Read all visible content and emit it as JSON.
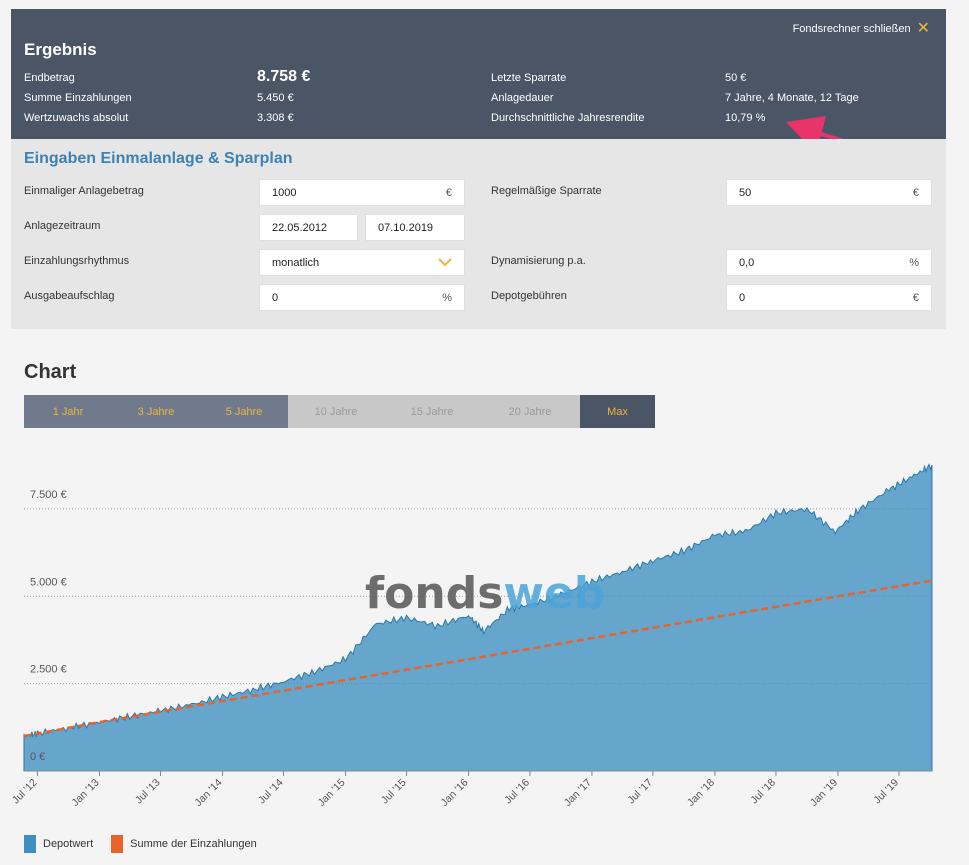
{
  "result": {
    "title": "Ergebnis",
    "close_label": "Fondsrechner schließen",
    "endbetrag_label": "Endbetrag",
    "endbetrag_value": "8.758 €",
    "summe_label": "Summe Einzahlungen",
    "summe_value": "5.450 €",
    "wertzuwachs_label": "Wertzuwachs absolut",
    "wertzuwachs_value": "3.308 €",
    "sparrate_label": "Letzte Sparrate",
    "sparrate_value": "50 €",
    "anlagedauer_label": "Anlagedauer",
    "anlagedauer_value": "7 Jahre, 4 Monate, 12 Tage",
    "rendite_label": "Durchschnittliche Jahresrendite",
    "rendite_value": "10,79 %"
  },
  "inputs": {
    "heading": "Eingaben Einmalanlage & Sparplan",
    "einmalig_label": "Einmaliger Anlagebetrag",
    "einmalig_value": "1000",
    "einmalig_unit": "€",
    "zeitraum_label": "Anlagezeitraum",
    "zeitraum_start": "22.05.2012",
    "zeitraum_end": "07.10.2019",
    "rhythmus_label": "Einzahlungsrhythmus",
    "rhythmus_value": "monatlich",
    "aufschlag_label": "Ausgabeaufschlag",
    "aufschlag_value": "0",
    "aufschlag_unit": "%",
    "sparrate_label": "Regelmäßige Sparrate",
    "sparrate_value": "50",
    "sparrate_unit": "€",
    "dynamisierung_label": "Dynamisierung p.a.",
    "dynamisierung_value": "0,0",
    "dynamisierung_unit": "%",
    "depotgebuehren_label": "Depotgebühren",
    "depotgebuehren_value": "0",
    "depotgebuehren_unit": "€"
  },
  "chart_section": {
    "title": "Chart",
    "tabs": [
      "1 Jahr",
      "3 Jahre",
      "5 Jahre",
      "10 Jahre",
      "15 Jahre",
      "20 Jahre",
      "Max"
    ],
    "watermark_a": "fonds",
    "watermark_b": "web"
  },
  "colors": {
    "depotwert": "#3d8fc2",
    "einzahlungen": "#e8622c",
    "accent": "#f0b43c",
    "header": "#4a5566"
  },
  "chart_data": {
    "type": "area",
    "yticks": [
      "0 €",
      "2.500 €",
      "5.000 €",
      "7.500 €"
    ],
    "ylim": [
      0,
      9000
    ],
    "xlim": [
      "2012-05-22",
      "2019-10-07"
    ],
    "x_ticks": [
      "Jul '12",
      "Jan '13",
      "Jul '13",
      "Jan '14",
      "Jul '14",
      "Jan '15",
      "Jul '15",
      "Jan '16",
      "Jul '16",
      "Jan '17",
      "Jul '17",
      "Jan '18",
      "Jul '18",
      "Jan '19",
      "Jul '19"
    ],
    "series": [
      {
        "name": "Depotwert",
        "type": "area",
        "points": [
          [
            "2012-05-22",
            1000
          ],
          [
            "2012-07-01",
            1070
          ],
          [
            "2012-10-01",
            1230
          ],
          [
            "2013-01-01",
            1400
          ],
          [
            "2013-04-01",
            1560
          ],
          [
            "2013-07-01",
            1720
          ],
          [
            "2013-10-01",
            1900
          ],
          [
            "2014-01-01",
            2120
          ],
          [
            "2014-04-01",
            2320
          ],
          [
            "2014-07-01",
            2560
          ],
          [
            "2014-10-01",
            2840
          ],
          [
            "2015-01-01",
            3200
          ],
          [
            "2015-04-01",
            4200
          ],
          [
            "2015-07-01",
            4380
          ],
          [
            "2015-10-01",
            4150
          ],
          [
            "2016-01-01",
            4450
          ],
          [
            "2016-02-15",
            4000
          ],
          [
            "2016-05-01",
            4650
          ],
          [
            "2016-07-01",
            4750
          ],
          [
            "2016-10-01",
            5050
          ],
          [
            "2017-01-01",
            5420
          ],
          [
            "2017-04-01",
            5700
          ],
          [
            "2017-07-01",
            6020
          ],
          [
            "2017-10-01",
            6300
          ],
          [
            "2018-01-01",
            6750
          ],
          [
            "2018-04-01",
            6850
          ],
          [
            "2018-07-01",
            7380
          ],
          [
            "2018-10-01",
            7500
          ],
          [
            "2018-12-24",
            6850
          ],
          [
            "2019-03-01",
            7450
          ],
          [
            "2019-06-01",
            8050
          ],
          [
            "2019-08-15",
            8450
          ],
          [
            "2019-10-07",
            8758
          ]
        ]
      },
      {
        "name": "Summe der Einzahlungen",
        "type": "line",
        "points": [
          [
            "2012-05-22",
            1000
          ],
          [
            "2013-01-01",
            1400
          ],
          [
            "2014-01-01",
            2000
          ],
          [
            "2015-01-01",
            2600
          ],
          [
            "2016-01-01",
            3200
          ],
          [
            "2017-01-01",
            3800
          ],
          [
            "2018-01-01",
            4400
          ],
          [
            "2019-01-01",
            5000
          ],
          [
            "2019-10-07",
            5450
          ]
        ]
      }
    ],
    "legend": [
      "Depotwert",
      "Summe der Einzahlungen"
    ]
  }
}
